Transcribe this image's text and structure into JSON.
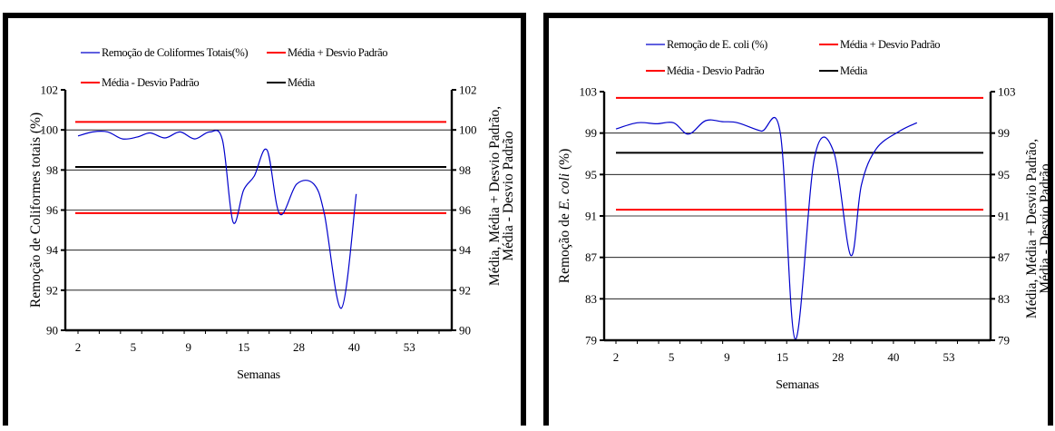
{
  "chart_data": [
    {
      "type": "line",
      "ylabel": "Remoção de Coliformes totais (%)",
      "ylabel_right_lines": [
        "Média, Média + Desvio Padrão,",
        "Média - Desvio Padrão"
      ],
      "xlabel": "Semanas",
      "x_tick_labels": [
        "2",
        "5",
        "9",
        "15",
        "28",
        "40",
        "53"
      ],
      "ylim": [
        90,
        102
      ],
      "y_ticks": [
        90,
        92,
        94,
        96,
        98,
        100,
        102
      ],
      "y_tick_labels": [
        "90",
        "92",
        "94",
        "96",
        "98",
        "100",
        "102"
      ],
      "grid": "horizontal",
      "legend": [
        {
          "label": "Remoção de Coliformes Totais(%)",
          "color": "#0000cc"
        },
        {
          "label": "Média + Desvio Padrão",
          "color": "#ff0000"
        },
        {
          "label": "Média - Desvio Padrão",
          "color": "#ff0000"
        },
        {
          "label": "Média",
          "color": "#000000"
        }
      ],
      "series": [
        {
          "name": "Remoção de Coliformes Totais(%)",
          "color": "#0000cc",
          "x": [
            0,
            0.7,
            1.4,
            2.1,
            2.8,
            3.4,
            4.1,
            4.8,
            5.5,
            6.2,
            6.8,
            7.3,
            7.8,
            8.3,
            8.9,
            9.5,
            10.3,
            11.1,
            11.6,
            12.4,
            13.1,
            13.8,
            14.6,
            15.5,
            16.2,
            17.0
          ],
          "values": [
            99.7,
            99.9,
            99.9,
            99.55,
            99.65,
            99.85,
            99.6,
            99.9,
            99.55,
            99.9,
            99.5,
            95.4,
            97.0,
            97.7,
            99.0,
            95.8,
            97.3,
            97.3,
            95.8,
            91.1,
            96.8,
            null,
            null,
            null,
            null,
            null
          ]
        },
        {
          "name": "Média + Desvio Padrão",
          "color": "#ff0000",
          "x": [
            0,
            17
          ],
          "values": [
            100.4,
            100.4
          ]
        },
        {
          "name": "Média - Desvio Padrão",
          "color": "#ff0000",
          "x": [
            0,
            17
          ],
          "values": [
            95.85,
            95.85
          ]
        },
        {
          "name": "Média",
          "color": "#000000",
          "x": [
            0,
            17
          ],
          "values": [
            98.15,
            98.15
          ]
        }
      ]
    },
    {
      "type": "line",
      "ylabel_prefix": "Remoção de ",
      "ylabel_italic": "E. coli",
      "ylabel_suffix": "  (%)",
      "ylabel_right_lines": [
        "Média, Média + Desvio Padrão,",
        "Média - Desvio Padrão"
      ],
      "xlabel": "Semanas",
      "x_tick_labels": [
        "2",
        "5",
        "9",
        "15",
        "28",
        "40",
        "53"
      ],
      "ylim": [
        79,
        103
      ],
      "y_ticks": [
        79,
        83,
        87,
        91,
        95,
        99,
        103
      ],
      "y_tick_labels": [
        "79",
        "83",
        "87",
        "91",
        "95",
        "99",
        "103"
      ],
      "grid": "horizontal",
      "legend": [
        {
          "label": "Remoção de E. coli (%)",
          "color": "#0000cc"
        },
        {
          "label": "Média + Desvio Padrão",
          "color": "#ff0000"
        },
        {
          "label": "Média - Desvio Padrão",
          "color": "#ff0000"
        },
        {
          "label": "Média",
          "color": "#000000"
        }
      ],
      "series": [
        {
          "name": "Remoção de E. coli (%)",
          "color": "#0000cc",
          "x": [
            0,
            1.0,
            1.9,
            2.7,
            3.4,
            4.2,
            5.0,
            5.7,
            6.8,
            7.7,
            8.4,
            9.3,
            10.2,
            11.0,
            11.5,
            12.2,
            13.3,
            14.1,
            15.1,
            16.0
          ],
          "values": [
            99.4,
            100.0,
            99.9,
            100.0,
            98.9,
            100.2,
            100.1,
            100.0,
            99.2,
            99.0,
            79.1,
            96.6,
            97.2,
            87.2,
            94.0,
            97.5,
            99.2,
            100.0,
            null,
            null
          ]
        },
        {
          "name": "Média + Desvio Padrão",
          "color": "#ff0000",
          "x": [
            0,
            17
          ],
          "values": [
            102.4,
            102.4
          ]
        },
        {
          "name": "Média - Desvio Padrão",
          "color": "#ff0000",
          "x": [
            0,
            17
          ],
          "values": [
            91.6,
            91.6
          ]
        },
        {
          "name": "Média",
          "color": "#000000",
          "x": [
            0,
            17
          ],
          "values": [
            97.1,
            97.1
          ]
        }
      ]
    }
  ]
}
